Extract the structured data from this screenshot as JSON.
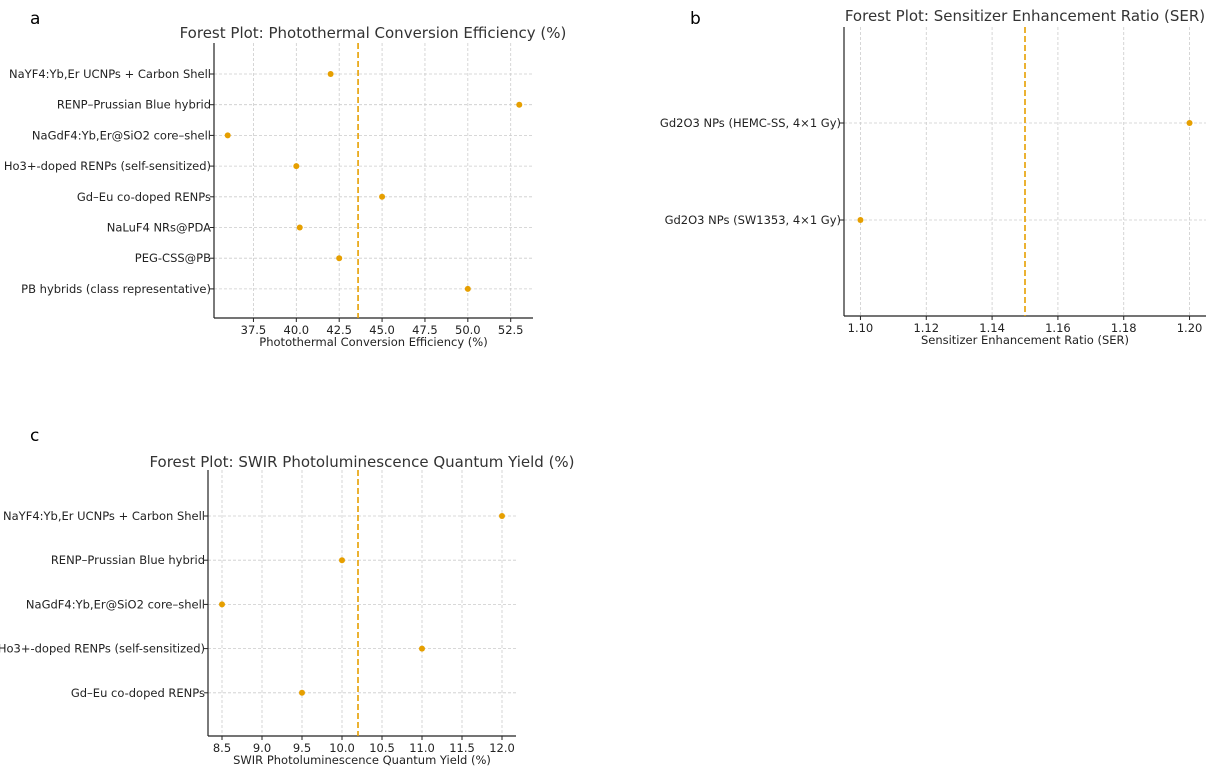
{
  "colors": {
    "marker": "#e69f00",
    "reference_line": "#e69f00",
    "grid": "#cccccc",
    "axis": "#222222"
  },
  "chart_data": [
    {
      "panel": "a",
      "type": "scatter",
      "title": "Forest Plot: Photothermal Conversion Efficiency (%)",
      "xlabel": "Photothermal Conversion Efficiency (%)",
      "ylabel": "",
      "xlim": [
        35.2,
        53.8
      ],
      "xticks": [
        "37.5",
        "40.0",
        "42.5",
        "45.0",
        "47.5",
        "50.0",
        "52.5"
      ],
      "reference_line": 43.6,
      "grid": true,
      "categories": [
        "NaYF4:Yb,Er UCNPs + Carbon Shell",
        "RENP–Prussian Blue hybrid",
        "NaGdF4:Yb,Er@SiO2 core–shell",
        "Ho3+-doped RENPs (self-sensitized)",
        "Gd–Eu co-doped RENPs",
        "NaLuF4 NRs@PDA",
        "PEG-CSS@PB",
        "PB hybrids (class representative)"
      ],
      "values": [
        42.0,
        53.0,
        36.0,
        40.0,
        45.0,
        40.2,
        42.5,
        50.0
      ]
    },
    {
      "panel": "b",
      "type": "scatter",
      "title": "Forest Plot: Sensitizer Enhancement Ratio (SER)",
      "xlabel": "Sensitizer Enhancement Ratio (SER)",
      "ylabel": "",
      "xlim": [
        1.095,
        1.205
      ],
      "xticks": [
        "1.10",
        "1.12",
        "1.14",
        "1.16",
        "1.18",
        "1.20"
      ],
      "reference_line": 1.15,
      "grid": true,
      "categories": [
        "Gd2O3 NPs (HEMC-SS, 4×1 Gy)",
        "Gd2O3 NPs (SW1353, 4×1 Gy)"
      ],
      "values": [
        1.2,
        1.1
      ]
    },
    {
      "panel": "c",
      "type": "scatter",
      "title": "Forest Plot: SWIR Photoluminescence Quantum Yield (%)",
      "xlabel": "SWIR Photoluminescence Quantum Yield (%)",
      "ylabel": "",
      "xlim": [
        8.325,
        12.175
      ],
      "xticks": [
        "8.5",
        "9.0",
        "9.5",
        "10.0",
        "10.5",
        "11.0",
        "11.5",
        "12.0"
      ],
      "reference_line": 10.2,
      "grid": true,
      "categories": [
        "NaYF4:Yb,Er UCNPs + Carbon Shell",
        "RENP–Prussian Blue hybrid",
        "NaGdF4:Yb,Er@SiO2 core–shell",
        "Ho3+-doped RENPs (self-sensitized)",
        "Gd–Eu co-doped RENPs"
      ],
      "values": [
        12.0,
        10.0,
        8.5,
        11.0,
        9.5
      ]
    }
  ]
}
